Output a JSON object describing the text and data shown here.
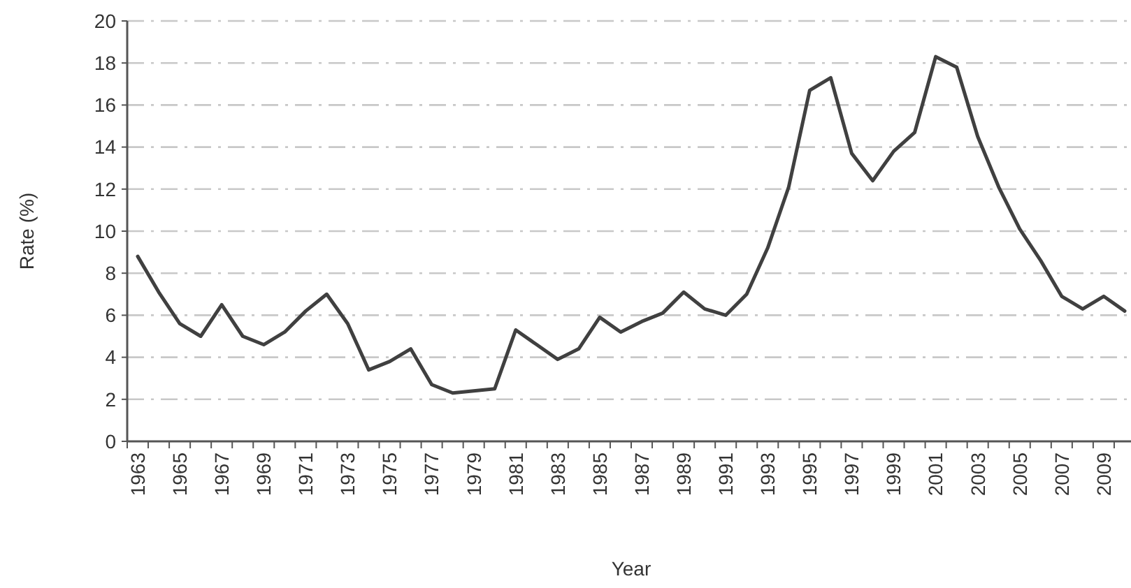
{
  "chart_data": {
    "type": "line",
    "xlabel": "Year",
    "ylabel": "Rate (%)",
    "categories": [
      "1963",
      null,
      "1965",
      null,
      "1967",
      null,
      "1969",
      null,
      "1971",
      null,
      "1973",
      null,
      "1975",
      null,
      "1977",
      null,
      "1979",
      null,
      "1981",
      null,
      "1983",
      null,
      "1985",
      null,
      "1987",
      null,
      "1989",
      null,
      "1991",
      null,
      "1993",
      null,
      "1995",
      null,
      "1997",
      null,
      "1999",
      null,
      "2001",
      null,
      "2003",
      null,
      "2005",
      null,
      "2007",
      null,
      "2009",
      null
    ],
    "series": [
      {
        "color": "#404040",
        "values": [
          8.8,
          7.1,
          5.6,
          5.0,
          6.5,
          5.0,
          4.6,
          5.2,
          6.2,
          7.0,
          5.6,
          3.4,
          3.8,
          4.4,
          2.7,
          2.3,
          2.4,
          2.5,
          5.3,
          4.6,
          3.9,
          4.4,
          5.9,
          5.2,
          5.7,
          6.1,
          7.1,
          6.3,
          6.0,
          7.0,
          9.2,
          12.1,
          16.7,
          17.3,
          13.7,
          12.4,
          13.8,
          14.7,
          18.3,
          17.8,
          14.5,
          12.1,
          10.1,
          8.6,
          6.9,
          6.3,
          6.9,
          6.2
        ]
      }
    ],
    "ylim": [
      0,
      20
    ],
    "yticks": [
      0,
      2,
      4,
      6,
      8,
      10,
      12,
      14,
      16,
      18,
      20
    ],
    "grid": "y",
    "marker": "none",
    "line_style": "solid"
  }
}
